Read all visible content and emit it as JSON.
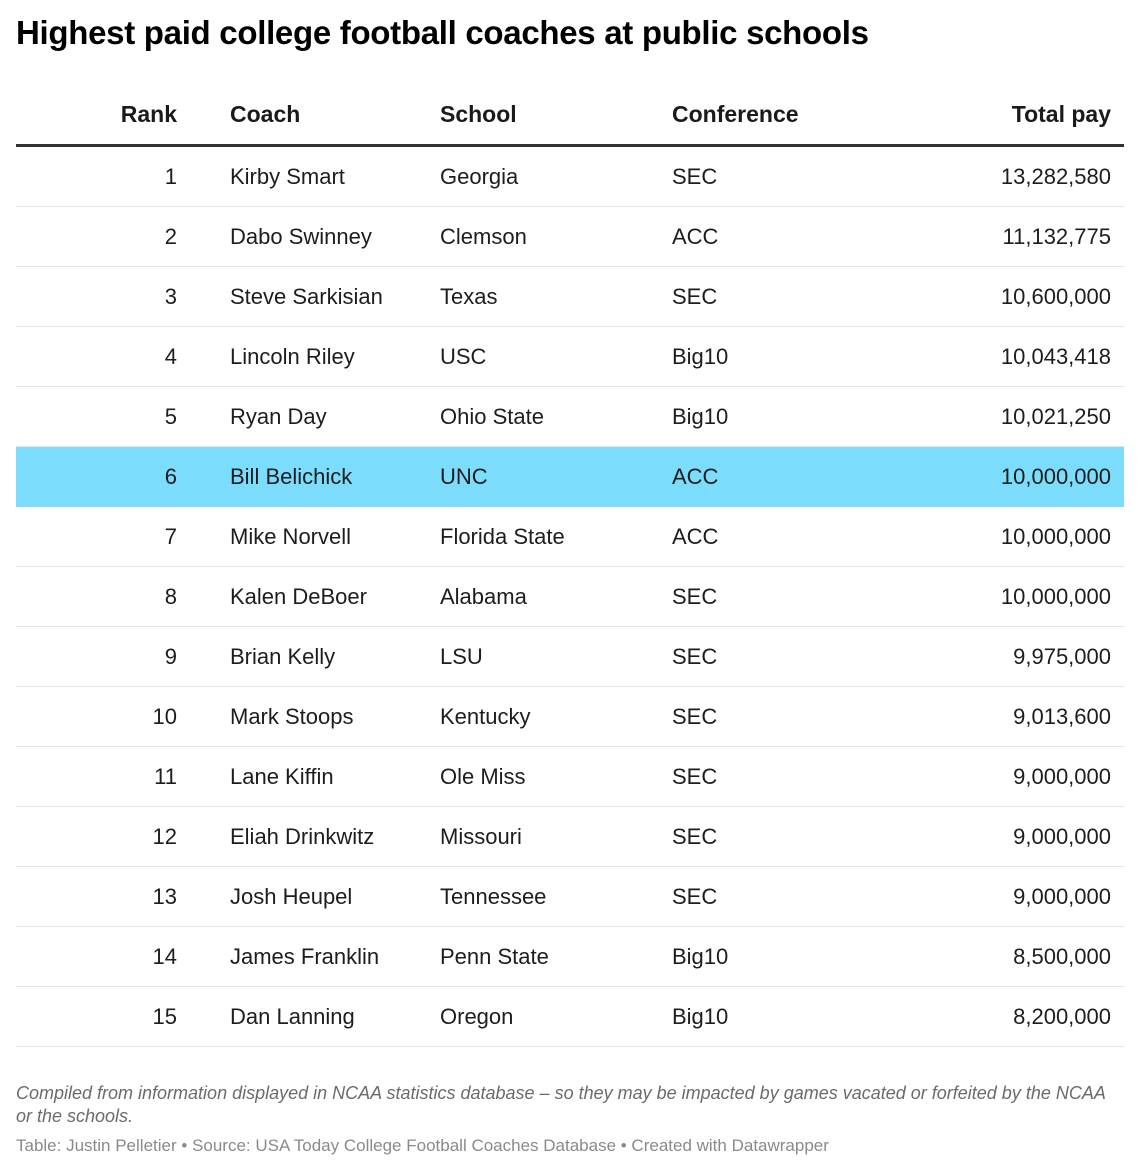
{
  "title": "Highest paid college football coaches at public schools",
  "table": {
    "headers": {
      "rank": "Rank",
      "coach": "Coach",
      "school": "School",
      "conference": "Conference",
      "total_pay": "Total pay"
    },
    "highlight_color": "#7bdcfc",
    "highlighted_rank": 6,
    "rows": [
      {
        "rank": "1",
        "coach": "Kirby Smart",
        "school": "Georgia",
        "conference": "SEC",
        "total_pay": "13,282,580"
      },
      {
        "rank": "2",
        "coach": "Dabo Swinney",
        "school": "Clemson",
        "conference": "ACC",
        "total_pay": "11,132,775"
      },
      {
        "rank": "3",
        "coach": "Steve Sarkisian",
        "school": "Texas",
        "conference": "SEC",
        "total_pay": "10,600,000"
      },
      {
        "rank": "4",
        "coach": "Lincoln Riley",
        "school": "USC",
        "conference": "Big10",
        "total_pay": "10,043,418"
      },
      {
        "rank": "5",
        "coach": "Ryan Day",
        "school": "Ohio State",
        "conference": "Big10",
        "total_pay": "10,021,250"
      },
      {
        "rank": "6",
        "coach": "Bill Belichick",
        "school": "UNC",
        "conference": "ACC",
        "total_pay": "10,000,000"
      },
      {
        "rank": "7",
        "coach": "Mike Norvell",
        "school": "Florida State",
        "conference": "ACC",
        "total_pay": "10,000,000"
      },
      {
        "rank": "8",
        "coach": "Kalen DeBoer",
        "school": "Alabama",
        "conference": "SEC",
        "total_pay": "10,000,000"
      },
      {
        "rank": "9",
        "coach": "Brian Kelly",
        "school": "LSU",
        "conference": "SEC",
        "total_pay": "9,975,000"
      },
      {
        "rank": "10",
        "coach": "Mark Stoops",
        "school": "Kentucky",
        "conference": "SEC",
        "total_pay": "9,013,600"
      },
      {
        "rank": "11",
        "coach": "Lane Kiffin",
        "school": "Ole Miss",
        "conference": "SEC",
        "total_pay": "9,000,000"
      },
      {
        "rank": "12",
        "coach": "Eliah Drinkwitz",
        "school": "Missouri",
        "conference": "SEC",
        "total_pay": "9,000,000"
      },
      {
        "rank": "13",
        "coach": "Josh Heupel",
        "school": "Tennessee",
        "conference": "SEC",
        "total_pay": "9,000,000"
      },
      {
        "rank": "14",
        "coach": "James Franklin",
        "school": "Penn State",
        "conference": "Big10",
        "total_pay": "8,500,000"
      },
      {
        "rank": "15",
        "coach": "Dan Lanning",
        "school": "Oregon",
        "conference": "Big10",
        "total_pay": "8,200,000"
      }
    ]
  },
  "notes": "Compiled from information displayed in NCAA statistics database – so they may be impacted by games vacated or forfeited by the NCAA or the schools.",
  "byline": "Table: Justin Pelletier • Source: USA Today College Football Coaches Database • Created with Datawrapper",
  "chart_data": {
    "type": "table",
    "title": "Highest paid college football coaches at public schools",
    "columns": [
      "Rank",
      "Coach",
      "School",
      "Conference",
      "Total pay"
    ],
    "rows": [
      [
        1,
        "Kirby Smart",
        "Georgia",
        "SEC",
        13282580
      ],
      [
        2,
        "Dabo Swinney",
        "Clemson",
        "ACC",
        11132775
      ],
      [
        3,
        "Steve Sarkisian",
        "Texas",
        "SEC",
        10600000
      ],
      [
        4,
        "Lincoln Riley",
        "USC",
        "Big10",
        10043418
      ],
      [
        5,
        "Ryan Day",
        "Ohio State",
        "Big10",
        10021250
      ],
      [
        6,
        "Bill Belichick",
        "UNC",
        "ACC",
        10000000
      ],
      [
        7,
        "Mike Norvell",
        "Florida State",
        "ACC",
        10000000
      ],
      [
        8,
        "Kalen DeBoer",
        "Alabama",
        "SEC",
        10000000
      ],
      [
        9,
        "Brian Kelly",
        "LSU",
        "SEC",
        9975000
      ],
      [
        10,
        "Mark Stoops",
        "Kentucky",
        "SEC",
        9013600
      ],
      [
        11,
        "Lane Kiffin",
        "Ole Miss",
        "SEC",
        9000000
      ],
      [
        12,
        "Eliah Drinkwitz",
        "Missouri",
        "SEC",
        9000000
      ],
      [
        13,
        "Josh Heupel",
        "Tennessee",
        "SEC",
        9000000
      ],
      [
        14,
        "James Franklin",
        "Penn State",
        "Big10",
        8500000
      ],
      [
        15,
        "Dan Lanning",
        "Oregon",
        "Big10",
        8200000
      ]
    ],
    "highlighted_row": 6
  }
}
